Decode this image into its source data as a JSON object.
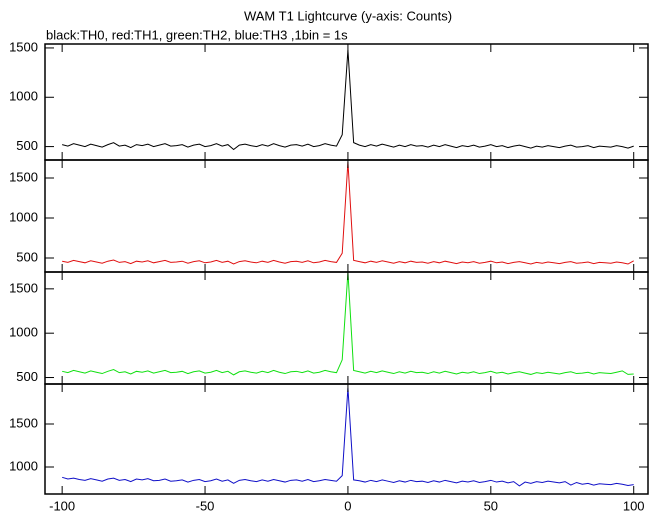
{
  "chart_data": {
    "type": "line",
    "title": "WAM T1 Lightcurve (y-axis: Counts)",
    "subtitle": "black:TH0, red:TH1, green:TH2, blue:TH3 ,1bin = 1s",
    "xlim": [
      -106,
      105
    ],
    "xticks": [
      -100,
      -50,
      0,
      50,
      100
    ],
    "x": [
      -100,
      -98,
      -96,
      -94,
      -92,
      -90,
      -88,
      -86,
      -84,
      -82,
      -80,
      -78,
      -76,
      -74,
      -72,
      -70,
      -68,
      -66,
      -64,
      -62,
      -60,
      -58,
      -56,
      -54,
      -52,
      -50,
      -48,
      -46,
      -44,
      -42,
      -40,
      -38,
      -36,
      -34,
      -32,
      -30,
      -28,
      -26,
      -24,
      -22,
      -20,
      -18,
      -16,
      -14,
      -12,
      -10,
      -8,
      -6,
      -4,
      -2,
      0,
      2,
      4,
      6,
      8,
      10,
      12,
      14,
      16,
      18,
      20,
      22,
      24,
      26,
      28,
      30,
      32,
      34,
      36,
      38,
      40,
      42,
      44,
      46,
      48,
      50,
      52,
      54,
      56,
      58,
      60,
      62,
      64,
      66,
      68,
      70,
      72,
      74,
      76,
      78,
      80,
      82,
      84,
      86,
      88,
      90,
      92,
      94,
      96,
      98,
      100
    ],
    "panels": [
      {
        "ylim": [
          364,
          1540
        ],
        "yticks": [
          500,
          1000,
          1500
        ],
        "series": [
          {
            "color": "#000000",
            "values": [
              520,
              505,
              530,
              515,
              500,
              525,
              510,
              495,
              520,
              540,
              505,
              515,
              490,
              520,
              510,
              525,
              500,
              515,
              530,
              505,
              510,
              520,
              495,
              515,
              525,
              500,
              510,
              530,
              505,
              520,
              470,
              515,
              525,
              510,
              500,
              520,
              505,
              530,
              510,
              495,
              515,
              520,
              505,
              525,
              500,
              510,
              530,
              515,
              505,
              620,
              1480,
              540,
              515,
              500,
              520,
              505,
              525,
              510,
              495,
              515,
              500,
              520,
              505,
              510,
              495,
              515,
              500,
              520,
              505,
              490,
              510,
              500,
              515,
              495,
              505,
              520,
              500,
              510,
              490,
              505,
              515,
              500,
              485,
              505,
              495,
              510,
              500,
              490,
              505,
              515,
              495,
              500,
              510,
              490,
              505,
              500,
              495,
              510,
              500,
              485,
              505
            ]
          }
        ]
      },
      {
        "ylim": [
          325,
          1725
        ],
        "yticks": [
          500,
          1000,
          1500
        ],
        "series": [
          {
            "color": "#e01010",
            "values": [
              460,
              445,
              470,
              455,
              440,
              465,
              450,
              435,
              460,
              475,
              445,
              455,
              430,
              460,
              450,
              465,
              440,
              455,
              470,
              445,
              450,
              460,
              435,
              455,
              465,
              440,
              450,
              470,
              445,
              460,
              425,
              455,
              465,
              450,
              440,
              460,
              445,
              470,
              450,
              435,
              455,
              460,
              445,
              465,
              440,
              450,
              470,
              455,
              445,
              560,
              1700,
              470,
              455,
              440,
              460,
              445,
              465,
              450,
              435,
              455,
              440,
              460,
              445,
              450,
              435,
              455,
              440,
              460,
              445,
              430,
              450,
              440,
              455,
              435,
              445,
              460,
              440,
              450,
              430,
              445,
              455,
              440,
              425,
              445,
              435,
              450,
              440,
              430,
              445,
              455,
              435,
              440,
              450,
              430,
              445,
              440,
              435,
              450,
              440,
              425,
              465
            ]
          }
        ]
      },
      {
        "ylim": [
          427,
          1690
        ],
        "yticks": [
          500,
          1000,
          1500
        ],
        "series": [
          {
            "color": "#10e010",
            "values": [
              570,
              555,
              580,
              565,
              550,
              575,
              560,
              545,
              570,
              590,
              555,
              565,
              540,
              570,
              560,
              575,
              550,
              565,
              580,
              555,
              560,
              570,
              545,
              565,
              575,
              550,
              560,
              580,
              555,
              570,
              530,
              565,
              575,
              560,
              550,
              570,
              555,
              580,
              560,
              545,
              565,
              570,
              555,
              575,
              550,
              560,
              580,
              565,
              555,
              700,
              1690,
              580,
              565,
              550,
              570,
              555,
              575,
              560,
              545,
              565,
              550,
              570,
              555,
              560,
              545,
              565,
              550,
              570,
              555,
              540,
              560,
              550,
              565,
              545,
              555,
              570,
              550,
              560,
              540,
              555,
              565,
              550,
              535,
              555,
              545,
              560,
              550,
              540,
              555,
              565,
              545,
              550,
              560,
              540,
              555,
              550,
              545,
              560,
              575,
              535,
              540
            ]
          }
        ]
      },
      {
        "ylim": [
          686,
          1965
        ],
        "yticks": [
          1000,
          1500
        ],
        "series": [
          {
            "color": "#1010c8",
            "values": [
              880,
              860,
              870,
              855,
              845,
              865,
              850,
              835,
              860,
              870,
              845,
              855,
              830,
              860,
              850,
              865,
              840,
              845,
              860,
              835,
              840,
              850,
              825,
              845,
              855,
              830,
              840,
              860,
              835,
              850,
              810,
              845,
              855,
              840,
              830,
              850,
              835,
              855,
              840,
              825,
              845,
              850,
              835,
              855,
              830,
              840,
              855,
              845,
              835,
              900,
              1920,
              850,
              840,
              825,
              845,
              830,
              850,
              835,
              820,
              840,
              825,
              845,
              830,
              835,
              820,
              840,
              825,
              845,
              830,
              815,
              835,
              825,
              840,
              820,
              830,
              845,
              825,
              835,
              815,
              830,
              780,
              825,
              810,
              830,
              820,
              835,
              825,
              815,
              830,
              790,
              820,
              800,
              810,
              790,
              805,
              800,
              795,
              810,
              800,
              785,
              795
            ]
          }
        ]
      }
    ]
  }
}
